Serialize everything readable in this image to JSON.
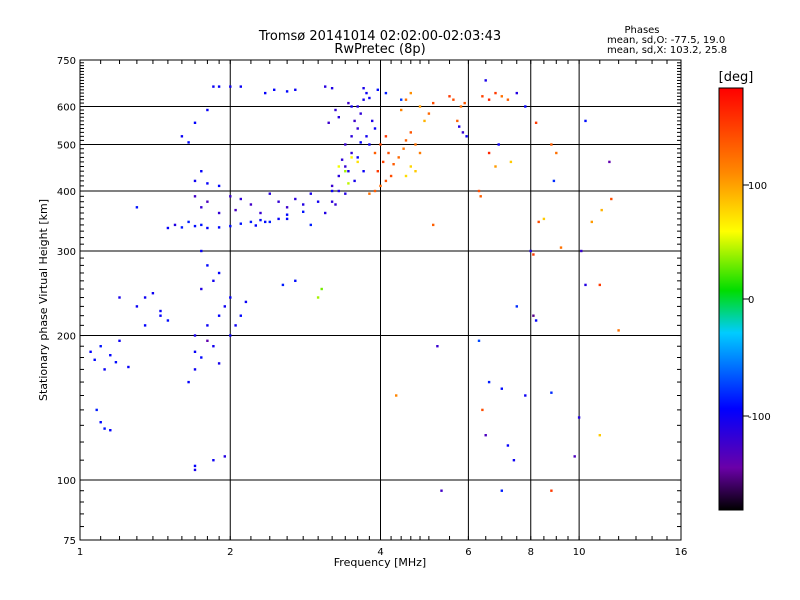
{
  "chart_data": {
    "type": "scatter",
    "title": "Tromsø 20141014 02:02:00-02:03:43",
    "subtitle": "RwPretec (8p)",
    "xlabel": "Frequency [MHz]",
    "ylabel": "Stationary phase Virtual Height [km]",
    "xscale": "log",
    "yscale": "log",
    "xlim": [
      1,
      16
    ],
    "ylim": [
      75,
      750
    ],
    "xticks": [
      "1",
      "2",
      "4",
      "6",
      "8",
      "10",
      "16"
    ],
    "yticks": [
      "75",
      "100",
      "200",
      "300",
      "400",
      "500",
      "600",
      "750"
    ],
    "grid": true,
    "stats": {
      "heading": "Phases",
      "line_o": "mean, sd,O: -77.5, 19.0",
      "line_x": "mean, sd,X: 103.2, 25.8"
    },
    "colorbar": {
      "label": "[deg]",
      "ticks": [
        "100",
        "0",
        "-100"
      ],
      "range": [
        -180,
        180
      ]
    },
    "series": [
      {
        "points": [
          [
            1.05,
            185,
            -95
          ],
          [
            1.07,
            178,
            -92
          ],
          [
            1.1,
            190,
            -88
          ],
          [
            1.12,
            170,
            -98
          ],
          [
            1.15,
            182,
            -93
          ],
          [
            1.18,
            176,
            -90
          ],
          [
            1.2,
            195,
            -100
          ],
          [
            1.25,
            172,
            -96
          ],
          [
            1.08,
            140,
            -85
          ],
          [
            1.1,
            132,
            -92
          ],
          [
            1.12,
            128,
            -88
          ],
          [
            1.15,
            127,
            -95
          ],
          [
            1.2,
            240,
            -105
          ],
          [
            1.3,
            230,
            -98
          ],
          [
            1.35,
            210,
            -94
          ],
          [
            1.4,
            245,
            -100
          ],
          [
            1.45,
            225,
            -97
          ],
          [
            1.5,
            215,
            -90
          ],
          [
            1.3,
            370,
            -88
          ],
          [
            1.5,
            335,
            -96
          ],
          [
            1.55,
            340,
            -110
          ],
          [
            1.6,
            336,
            -86
          ],
          [
            1.7,
            338,
            -90
          ],
          [
            1.8,
            335,
            -94
          ],
          [
            1.9,
            336,
            -92
          ],
          [
            2.0,
            338,
            -90
          ],
          [
            2.1,
            342,
            -88
          ],
          [
            2.2,
            345,
            -86
          ],
          [
            2.3,
            348,
            -90
          ],
          [
            2.4,
            345,
            -85
          ],
          [
            2.6,
            350,
            -92
          ],
          [
            1.65,
            345,
            -84
          ],
          [
            1.75,
            340,
            -88
          ],
          [
            1.7,
            390,
            -125
          ],
          [
            1.75,
            370,
            -120
          ],
          [
            1.8,
            380,
            -130
          ],
          [
            1.9,
            360,
            -118
          ],
          [
            2.0,
            390,
            -122
          ],
          [
            2.05,
            365,
            -128
          ],
          [
            2.1,
            385,
            -116
          ],
          [
            2.2,
            375,
            -125
          ],
          [
            2.3,
            360,
            -120
          ],
          [
            2.4,
            395,
            -112
          ],
          [
            2.5,
            380,
            -118
          ],
          [
            2.6,
            370,
            -122
          ],
          [
            2.7,
            385,
            -115
          ],
          [
            2.8,
            375,
            -110
          ],
          [
            2.9,
            395,
            -105
          ],
          [
            3.0,
            380,
            -102
          ],
          [
            3.2,
            400,
            -100
          ],
          [
            1.7,
            420,
            -100
          ],
          [
            1.8,
            415,
            -96
          ],
          [
            1.9,
            410,
            -92
          ],
          [
            1.75,
            440,
            -95
          ],
          [
            1.6,
            520,
            -98
          ],
          [
            1.7,
            555,
            -94
          ],
          [
            1.65,
            505,
            -92
          ],
          [
            1.8,
            590,
            -96
          ],
          [
            1.85,
            660,
            -100
          ],
          [
            1.9,
            660,
            -95
          ],
          [
            2.0,
            660,
            -102
          ],
          [
            2.1,
            660,
            -98
          ],
          [
            2.35,
            640,
            -96
          ],
          [
            2.45,
            650,
            -94
          ],
          [
            2.6,
            645,
            -92
          ],
          [
            2.7,
            650,
            -98
          ],
          [
            3.1,
            660,
            -112
          ],
          [
            3.2,
            655,
            -108
          ],
          [
            1.65,
            160,
            -95
          ],
          [
            1.7,
            170,
            -100
          ],
          [
            1.75,
            180,
            -92
          ],
          [
            1.7,
            200,
            -105
          ],
          [
            1.8,
            210,
            -98
          ],
          [
            1.85,
            190,
            -102
          ],
          [
            1.9,
            220,
            -94
          ],
          [
            1.95,
            230,
            -100
          ],
          [
            2.0,
            240,
            -96
          ],
          [
            1.75,
            250,
            -110
          ],
          [
            1.8,
            280,
            -92
          ],
          [
            1.75,
            300,
            -98
          ],
          [
            1.85,
            260,
            -102
          ],
          [
            1.9,
            270,
            -95
          ],
          [
            2.05,
            210,
            -100
          ],
          [
            2.1,
            220,
            -92
          ],
          [
            2.15,
            235,
            -98
          ],
          [
            1.8,
            195,
            -140
          ],
          [
            1.7,
            185,
            -96
          ],
          [
            1.9,
            175,
            -104
          ],
          [
            2.0,
            200,
            -100
          ],
          [
            1.7,
            105,
            -105
          ],
          [
            1.85,
            110,
            -100
          ],
          [
            1.95,
            112,
            -110
          ],
          [
            1.7,
            107,
            -95
          ],
          [
            3.1,
            360,
            -110
          ],
          [
            3.2,
            380,
            -115
          ],
          [
            3.3,
            400,
            -108
          ],
          [
            3.2,
            410,
            -120
          ],
          [
            3.3,
            430,
            -112
          ],
          [
            3.4,
            450,
            -118
          ],
          [
            3.5,
            480,
            -116
          ],
          [
            3.4,
            500,
            -120
          ],
          [
            3.5,
            520,
            -114
          ],
          [
            3.6,
            540,
            -118
          ],
          [
            3.55,
            560,
            -122
          ],
          [
            3.65,
            580,
            -116
          ],
          [
            3.6,
            600,
            -110
          ],
          [
            3.7,
            620,
            -104
          ],
          [
            3.75,
            640,
            -100
          ],
          [
            3.7,
            655,
            -105
          ],
          [
            3.8,
            625,
            -100
          ],
          [
            3.85,
            560,
            -108
          ],
          [
            3.5,
            600,
            -102
          ],
          [
            3.3,
            570,
            -112
          ],
          [
            3.25,
            590,
            -118
          ],
          [
            3.45,
            610,
            -124
          ],
          [
            3.15,
            555,
            -122
          ],
          [
            3.35,
            465,
            -116
          ],
          [
            3.45,
            440,
            -105
          ],
          [
            3.6,
            470,
            -96
          ],
          [
            3.8,
            500,
            -100
          ],
          [
            3.7,
            440,
            -98
          ],
          [
            3.55,
            420,
            -104
          ],
          [
            3.4,
            395,
            -110
          ],
          [
            3.25,
            375,
            -118
          ],
          [
            3.75,
            520,
            -102
          ],
          [
            3.9,
            540,
            -96
          ],
          [
            3.65,
            505,
            -94
          ],
          [
            3.4,
            440,
            40
          ],
          [
            3.5,
            470,
            60
          ],
          [
            3.6,
            460,
            70
          ],
          [
            3.3,
            450,
            55
          ],
          [
            3.45,
            415,
            45
          ],
          [
            3.8,
            395,
            120
          ],
          [
            3.9,
            400,
            130
          ],
          [
            4.0,
            410,
            125
          ],
          [
            4.1,
            420,
            135
          ],
          [
            4.2,
            430,
            140
          ],
          [
            3.95,
            440,
            150
          ],
          [
            4.05,
            460,
            145
          ],
          [
            4.15,
            480,
            138
          ],
          [
            4.0,
            500,
            142
          ],
          [
            4.1,
            520,
            150
          ],
          [
            3.9,
            480,
            130
          ],
          [
            4.25,
            455,
            132
          ],
          [
            4.35,
            470,
            125
          ],
          [
            4.45,
            490,
            118
          ],
          [
            4.5,
            510,
            128
          ],
          [
            4.6,
            530,
            135
          ],
          [
            4.7,
            500,
            120
          ],
          [
            4.8,
            480,
            115
          ],
          [
            4.6,
            450,
            75
          ],
          [
            4.7,
            440,
            80
          ],
          [
            4.5,
            430,
            72
          ],
          [
            4.4,
            590,
            110
          ],
          [
            4.5,
            620,
            120
          ],
          [
            4.6,
            640,
            105
          ],
          [
            4.8,
            600,
            100
          ],
          [
            4.9,
            560,
            90
          ],
          [
            5.0,
            580,
            125
          ],
          [
            5.1,
            610,
            140
          ],
          [
            3.95,
            650,
            -90
          ],
          [
            4.1,
            640,
            -85
          ],
          [
            4.4,
            620,
            -75
          ],
          [
            5.5,
            630,
            150
          ],
          [
            5.6,
            620,
            140
          ],
          [
            5.7,
            560,
            130
          ],
          [
            5.8,
            600,
            120
          ],
          [
            5.9,
            610,
            135
          ],
          [
            5.75,
            545,
            -110
          ],
          [
            5.85,
            530,
            -120
          ],
          [
            5.95,
            520,
            -100
          ],
          [
            6.3,
            400,
            140
          ],
          [
            6.35,
            390,
            130
          ],
          [
            6.4,
            630,
            145
          ],
          [
            6.6,
            620,
            160
          ],
          [
            6.8,
            640,
            150
          ],
          [
            7.0,
            630,
            120
          ],
          [
            7.2,
            620,
            130
          ],
          [
            6.5,
            680,
            -105
          ],
          [
            7.5,
            640,
            -110
          ],
          [
            6.6,
            480,
            160
          ],
          [
            6.8,
            450,
            100
          ],
          [
            6.9,
            500,
            -100
          ],
          [
            7.3,
            460,
            80
          ],
          [
            7.8,
            600,
            -95
          ],
          [
            8.2,
            555,
            150
          ],
          [
            8.8,
            500,
            130
          ],
          [
            9.0,
            480,
            120
          ],
          [
            10.3,
            560,
            -90
          ],
          [
            11.5,
            460,
            -140
          ],
          [
            8.9,
            420,
            -80
          ],
          [
            8.0,
            300,
            -110
          ],
          [
            8.1,
            295,
            150
          ],
          [
            8.3,
            345,
            140
          ],
          [
            8.5,
            350,
            80
          ],
          [
            9.2,
            305,
            120
          ],
          [
            10.1,
            300,
            -120
          ],
          [
            10.6,
            345,
            100
          ],
          [
            11.1,
            365,
            90
          ],
          [
            11.6,
            385,
            140
          ],
          [
            10.3,
            255,
            -110
          ],
          [
            11.0,
            255,
            150
          ],
          [
            7.5,
            230,
            -80
          ],
          [
            8.1,
            220,
            -150
          ],
          [
            8.2,
            215,
            -95
          ],
          [
            6.3,
            195,
            -70
          ],
          [
            5.2,
            190,
            -120
          ],
          [
            5.1,
            340,
            130
          ],
          [
            6.6,
            160,
            -85
          ],
          [
            7.0,
            155,
            -90
          ],
          [
            7.8,
            150,
            -100
          ],
          [
            8.8,
            152,
            -80
          ],
          [
            10.0,
            135,
            -110
          ],
          [
            11.0,
            124,
            80
          ],
          [
            12.0,
            205,
            120
          ],
          [
            6.4,
            140,
            140
          ],
          [
            7.2,
            118,
            -95
          ],
          [
            7.4,
            110,
            -100
          ],
          [
            6.5,
            124,
            -130
          ],
          [
            9.8,
            112,
            -130
          ],
          [
            8.8,
            95,
            150
          ],
          [
            7.0,
            95,
            -85
          ],
          [
            5.3,
            95,
            -125
          ],
          [
            4.3,
            150,
            110
          ],
          [
            2.5,
            350,
            -96
          ],
          [
            2.6,
            357,
            -92
          ],
          [
            2.8,
            362,
            -88
          ],
          [
            2.9,
            340,
            -84
          ],
          [
            2.35,
            345,
            -90
          ],
          [
            2.25,
            339,
            -94
          ],
          [
            3.0,
            240,
            40
          ],
          [
            3.05,
            250,
            30
          ],
          [
            2.55,
            255,
            -85
          ],
          [
            2.7,
            260,
            -90
          ],
          [
            1.35,
            240,
            -100
          ],
          [
            1.45,
            220,
            -95
          ]
        ]
      }
    ]
  }
}
